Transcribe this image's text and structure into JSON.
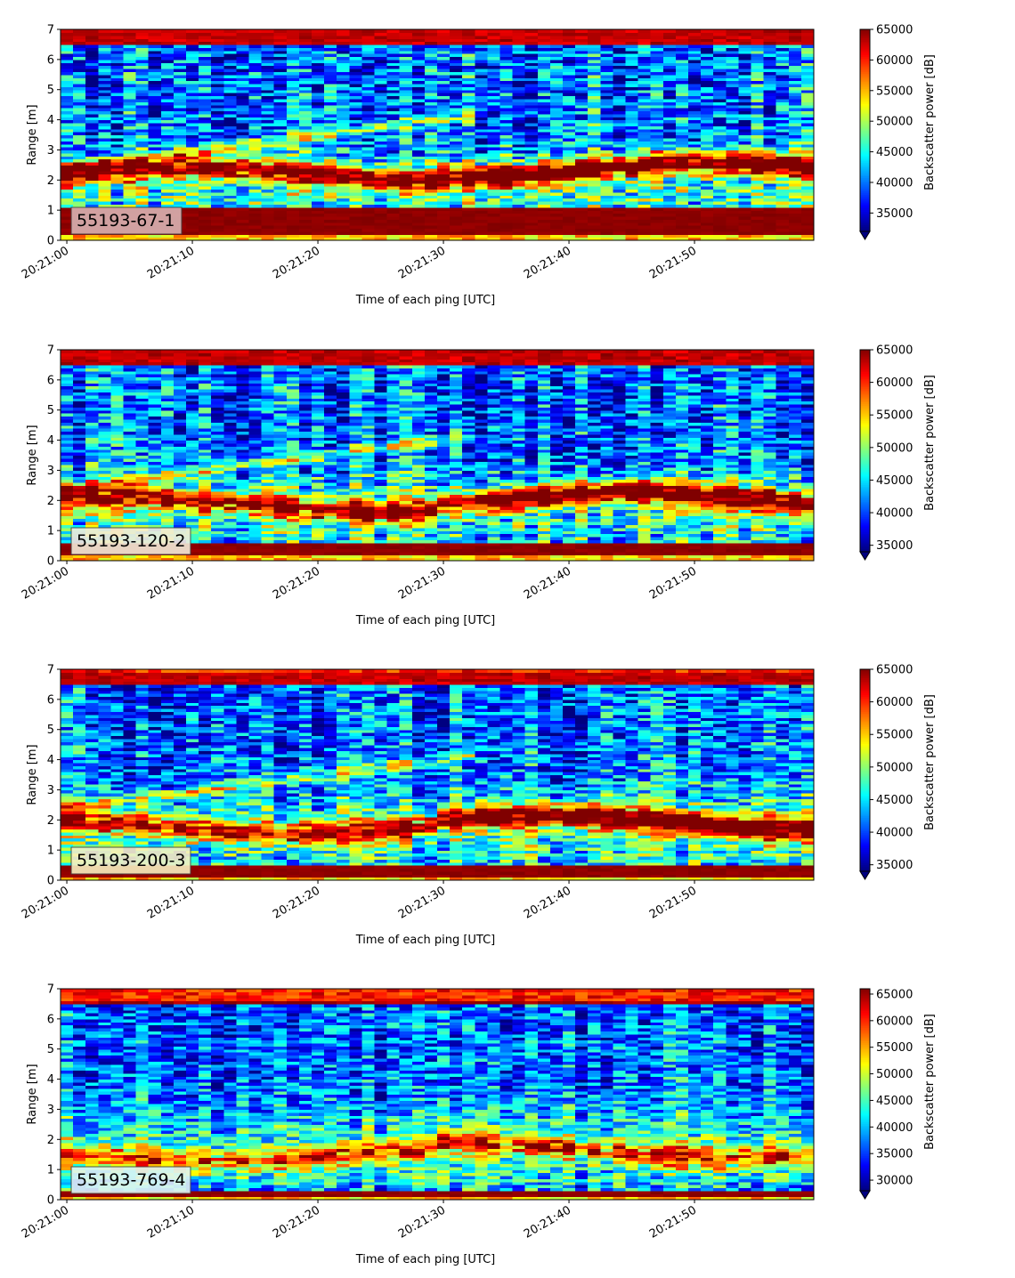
{
  "chart_data": [
    {
      "type": "heatmap",
      "title": "",
      "label": "55193-67-1",
      "label_box_color": "#d9b3b3",
      "xlabel": "Time of each ping [UTC]",
      "ylabel": "Range [m]",
      "xticks": [
        "20:21:00",
        "20:21:10",
        "20:21:20",
        "20:21:30",
        "20:21:40",
        "20:21:50"
      ],
      "xlim_seconds": [
        -0.5,
        59.5
      ],
      "ylim": [
        0,
        7
      ],
      "yticks": [
        "0",
        "1",
        "2",
        "3",
        "4",
        "5",
        "6",
        "7"
      ],
      "colorbar": {
        "label": "Backscatter power [dB]",
        "min": 32000,
        "max": 65000,
        "ticks": [
          "35000",
          "40000",
          "45000",
          "50000",
          "55000",
          "60000",
          "65000"
        ],
        "extend": "min",
        "colormap": "jet"
      },
      "features": {
        "surface_band_m": [
          0.25,
          1.05
        ],
        "top_band_m": [
          6.5,
          7.0
        ],
        "layer_center_m": 2.2,
        "layer_intensity": 0.75,
        "late_layer_bright": 0.9,
        "rising_feature": true,
        "noise_level": 0.28
      }
    },
    {
      "type": "heatmap",
      "title": "",
      "label": "55193-120-2",
      "label_box_color": "#f3ecd9",
      "xlabel": "Time of each ping [UTC]",
      "ylabel": "Range [m]",
      "xticks": [
        "20:21:00",
        "20:21:10",
        "20:21:20",
        "20:21:30",
        "20:21:40",
        "20:21:50"
      ],
      "xlim_seconds": [
        -0.5,
        59.5
      ],
      "ylim": [
        0,
        7
      ],
      "yticks": [
        "0",
        "1",
        "2",
        "3",
        "4",
        "5",
        "6",
        "7"
      ],
      "colorbar": {
        "label": "Backscatter power [dB]",
        "min": 34000,
        "max": 65000,
        "ticks": [
          "35000",
          "40000",
          "45000",
          "50000",
          "55000",
          "60000",
          "65000"
        ],
        "extend": "min",
        "colormap": "jet"
      },
      "features": {
        "surface_band_m": [
          0.2,
          0.55
        ],
        "top_band_m": [
          6.45,
          7.0
        ],
        "layer_center_m": 1.9,
        "layer_intensity": 0.62,
        "late_layer_bright": 0.85,
        "rising_feature": true,
        "noise_level": 0.26
      }
    },
    {
      "type": "heatmap",
      "title": "",
      "label": "55193-200-3",
      "label_box_color": "#f7f0c0",
      "xlabel": "Time of each ping [UTC]",
      "ylabel": "Range [m]",
      "xticks": [
        "20:21:00",
        "20:21:10",
        "20:21:20",
        "20:21:30",
        "20:21:40",
        "20:21:50"
      ],
      "xlim_seconds": [
        -0.5,
        59.5
      ],
      "ylim": [
        0,
        7
      ],
      "yticks": [
        "0",
        "1",
        "2",
        "3",
        "4",
        "5",
        "6",
        "7"
      ],
      "colorbar": {
        "label": "Backscatter power [dB]",
        "min": 34000,
        "max": 65000,
        "ticks": [
          "35000",
          "40000",
          "45000",
          "50000",
          "55000",
          "60000",
          "65000"
        ],
        "extend": "min",
        "colormap": "jet"
      },
      "features": {
        "surface_band_m": [
          0.15,
          0.45
        ],
        "top_band_m": [
          6.45,
          6.85
        ],
        "layer_center_m": 1.8,
        "layer_intensity": 0.58,
        "late_layer_bright": 0.85,
        "rising_feature": true,
        "noise_level": 0.26
      }
    },
    {
      "type": "heatmap",
      "title": "",
      "label": "55193-769-4",
      "label_box_color": "#e0f4f2",
      "xlabel": "Time of each ping [UTC]",
      "ylabel": "Range [m]",
      "xticks": [
        "20:21:00",
        "20:21:10",
        "20:21:20",
        "20:21:30",
        "20:21:40",
        "20:21:50"
      ],
      "xlim_seconds": [
        -0.5,
        59.5
      ],
      "ylim": [
        0,
        7
      ],
      "yticks": [
        "0",
        "1",
        "2",
        "3",
        "4",
        "5",
        "6",
        "7"
      ],
      "colorbar": {
        "label": "Backscatter power [dB]",
        "min": 28000,
        "max": 66000,
        "ticks": [
          "30000",
          "35000",
          "40000",
          "45000",
          "50000",
          "55000",
          "60000",
          "65000"
        ],
        "extend": "min",
        "colormap": "jet"
      },
      "features": {
        "surface_band_m": [
          0.15,
          0.3
        ],
        "top_band_m": [
          6.45,
          6.6
        ],
        "layer_center_m": 1.5,
        "layer_intensity": 0.42,
        "late_layer_bright": 0.45,
        "rising_feature": false,
        "noise_level": 0.24
      }
    }
  ]
}
